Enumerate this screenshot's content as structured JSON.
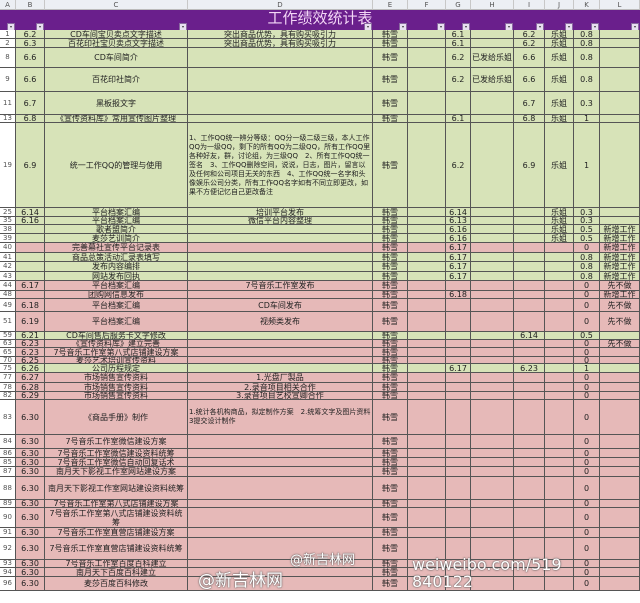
{
  "title": "工作绩效统计表",
  "columns": [
    "A",
    "B",
    "C",
    "D",
    "E",
    "F",
    "G",
    "H",
    "I",
    "J",
    "K",
    "L"
  ],
  "colors": {
    "green": "#d7e3b8",
    "pink": "#e6b9b8",
    "title_bg": "#6a1f8c",
    "title_text": "#f3d6f6"
  },
  "rows": [
    {
      "n": "1",
      "b": "6.2",
      "c": "CD车间宝贝卖点文字描述",
      "d": "突出商品优势，具有购买吸引力",
      "e": "韩雪",
      "f": "",
      "g": "6.1",
      "h": "",
      "i": "6.2",
      "j": "乐姐",
      "k": "0.8",
      "l": "",
      "color": "green"
    },
    {
      "n": "2",
      "b": "6.3",
      "c": "百花印社宝贝卖点文字描述",
      "d": "突出商品优势，具有购买吸引力",
      "e": "韩雪",
      "f": "",
      "g": "6.1",
      "h": "",
      "i": "6.2",
      "j": "乐姐",
      "k": "0.8",
      "l": "",
      "color": "green"
    },
    {
      "n": "8",
      "b": "6.6",
      "c": "CD车间简介",
      "d": "",
      "e": "韩雪",
      "f": "",
      "g": "6.2",
      "h": "已发给乐姐",
      "i": "6.6",
      "j": "乐姐",
      "k": "0.8",
      "l": "",
      "color": "green"
    },
    {
      "n": "9",
      "b": "6.6",
      "c": "百花印社简介",
      "d": "",
      "e": "韩雪",
      "f": "",
      "g": "6.2",
      "h": "已发给乐姐",
      "i": "6.6",
      "j": "乐姐",
      "k": "0.8",
      "l": "",
      "color": "green"
    },
    {
      "n": "11",
      "b": "6.7",
      "c": "黑板报文字",
      "d": "",
      "e": "韩雪",
      "f": "",
      "g": "",
      "h": "",
      "i": "6.7",
      "j": "乐姐",
      "k": "0.3",
      "l": "",
      "color": "green"
    },
    {
      "n": "13",
      "b": "6.8",
      "c": "《宣传资料库》常用宣传图片整理",
      "d": "",
      "e": "韩雪",
      "f": "",
      "g": "6.1",
      "h": "",
      "i": "6.8",
      "j": "乐姐",
      "k": "1",
      "l": "",
      "color": "green"
    },
    {
      "n": "19",
      "b": "6.9",
      "c": "统一工作QQ的管理与使用",
      "d": "1、工作QQ统一辨分等级：QQ分一级二级三级，本人工作QQ为一级QQ，剩下的所有QQ为二级QQ，所有工作QQ里各种好友，群，讨论组，为三级QQ　2、所有工作QQ统一签名　3、工作QQ删除空间，说说，日志，图片，留言以及任何和公司项目无关的东西　4、工作QQ统一名字和头像娱乐公司分类，所有工作QQ名字如有不同立即更改，如果不方便记忆自己更改备注",
      "e": "韩雪",
      "f": "",
      "g": "6.2",
      "h": "",
      "i": "6.9",
      "j": "乐姐",
      "k": "1",
      "l": "",
      "color": "green"
    },
    {
      "n": "25",
      "b": "6.14",
      "c": "平台档案汇编",
      "d": "培训平台发布",
      "e": "韩雪",
      "f": "",
      "g": "6.14",
      "h": "",
      "i": "",
      "j": "乐姐",
      "k": "0.3",
      "l": "",
      "color": "green"
    },
    {
      "n": "35",
      "b": "6.16",
      "c": "平台档案汇编",
      "d": "微信平台内容整理",
      "e": "韩雪",
      "f": "",
      "g": "6.13",
      "h": "",
      "i": "",
      "j": "乐姐",
      "k": "0.3",
      "l": "",
      "color": "green"
    },
    {
      "n": "38",
      "b": "",
      "c": "歌者盟简介",
      "d": "",
      "e": "韩雪",
      "f": "",
      "g": "6.16",
      "h": "",
      "i": "",
      "j": "乐姐",
      "k": "0.5",
      "l": "新增工作",
      "color": "green"
    },
    {
      "n": "39",
      "b": "",
      "c": "麦莎艺训简介",
      "d": "",
      "e": "韩雪",
      "f": "",
      "g": "6.16",
      "h": "",
      "i": "",
      "j": "乐姐",
      "k": "0.5",
      "l": "新增工作",
      "color": "green"
    },
    {
      "n": "40",
      "b": "",
      "c": "完善幕社宣传平台记录表",
      "d": "",
      "e": "韩雪",
      "f": "",
      "g": "6.17",
      "h": "",
      "i": "",
      "j": "",
      "k": "0",
      "l": "新增工作",
      "color": "pink"
    },
    {
      "n": "41",
      "b": "",
      "c": "商品总策活动汇录表填写",
      "d": "",
      "e": "韩雪",
      "f": "",
      "g": "6.17",
      "h": "",
      "i": "",
      "j": "",
      "k": "0.8",
      "l": "新增工作",
      "color": "green"
    },
    {
      "n": "42",
      "b": "",
      "c": "发布内容编排",
      "d": "",
      "e": "韩雪",
      "f": "",
      "g": "6.17",
      "h": "",
      "i": "",
      "j": "",
      "k": "0.8",
      "l": "新增工作",
      "color": "green"
    },
    {
      "n": "43",
      "b": "",
      "c": "网站发布回执",
      "d": "",
      "e": "韩雪",
      "f": "",
      "g": "6.17",
      "h": "",
      "i": "",
      "j": "",
      "k": "0.8",
      "l": "新增工作",
      "color": "green"
    },
    {
      "n": "44",
      "b": "6.17",
      "c": "平台档案汇编",
      "d": "7号音乐工作室发布",
      "e": "韩雪",
      "f": "",
      "g": "",
      "h": "",
      "i": "",
      "j": "",
      "k": "0",
      "l": "先不做",
      "color": "pink"
    },
    {
      "n": "48",
      "b": "",
      "c": "团购网信息发布",
      "d": "",
      "e": "韩雪",
      "f": "",
      "g": "6.18",
      "h": "",
      "i": "",
      "j": "",
      "k": "0",
      "l": "新增工作",
      "color": "pink"
    },
    {
      "n": "49",
      "b": "6.18",
      "c": "平台档案汇编",
      "d": "CD车间发布",
      "e": "韩雪",
      "f": "",
      "g": "",
      "h": "",
      "i": "",
      "j": "",
      "k": "0",
      "l": "先不做",
      "color": "pink"
    },
    {
      "n": "51",
      "b": "6.19",
      "c": "平台档案汇编",
      "d": "视频类发布",
      "e": "韩雪",
      "f": "",
      "g": "",
      "h": "",
      "i": "",
      "j": "",
      "k": "0",
      "l": "先不做",
      "color": "pink"
    },
    {
      "n": "59",
      "b": "6.21",
      "c": "CD车间售后服务卡文字修改",
      "d": "",
      "e": "韩雪",
      "f": "",
      "g": "",
      "h": "",
      "i": "6.14",
      "j": "",
      "k": "0.5",
      "l": "",
      "color": "green"
    },
    {
      "n": "63",
      "b": "6.23",
      "c": "《宣传资料库》建立完善",
      "d": "",
      "e": "韩雪",
      "f": "",
      "g": "",
      "h": "",
      "i": "",
      "j": "",
      "k": "0",
      "l": "先不做",
      "color": "pink"
    },
    {
      "n": "65",
      "b": "6.23",
      "c": "7号音乐工作室第八式店铺建设方案",
      "d": "",
      "e": "韩雪",
      "f": "",
      "g": "",
      "h": "",
      "i": "",
      "j": "",
      "k": "0",
      "l": "",
      "color": "pink"
    },
    {
      "n": "70",
      "b": "6.25",
      "c": "麦莎艺术培训宣传资料",
      "d": "",
      "e": "韩雪",
      "f": "",
      "g": "",
      "h": "",
      "i": "",
      "j": "",
      "k": "0",
      "l": "",
      "color": "pink"
    },
    {
      "n": "75",
      "b": "6.26",
      "c": "公司历程规定",
      "d": "",
      "e": "韩雪",
      "f": "",
      "g": "6.17",
      "h": "",
      "i": "6.23",
      "j": "",
      "k": "1",
      "l": "",
      "color": "green"
    },
    {
      "n": "77",
      "b": "6.27",
      "c": "市场销售宣传资料",
      "d": "1.光盘厂製品",
      "e": "韩雪",
      "f": "",
      "g": "",
      "h": "",
      "i": "",
      "j": "",
      "k": "0",
      "l": "",
      "color": "pink"
    },
    {
      "n": "78",
      "b": "6.28",
      "c": "市场销售宣传资料",
      "d": "2.录音项目相关合作",
      "e": "韩雪",
      "f": "",
      "g": "",
      "h": "",
      "i": "",
      "j": "",
      "k": "0",
      "l": "",
      "color": "pink"
    },
    {
      "n": "82",
      "b": "6.29",
      "c": "市场销售宣传资料",
      "d": "3.录音项目艺校宣卿合作",
      "e": "韩雪",
      "f": "",
      "g": "",
      "h": "",
      "i": "",
      "j": "",
      "k": "0",
      "l": "",
      "color": "pink"
    },
    {
      "n": "83",
      "b": "6.30",
      "c": "《商品手册》制作",
      "d": "1.统计各机构商品，拟定制作方案　2.统筹文字及图片资料　3提交设计制作",
      "e": "韩雪",
      "f": "",
      "g": "",
      "h": "",
      "i": "",
      "j": "",
      "k": "0",
      "l": "",
      "color": "pink"
    },
    {
      "n": "84",
      "b": "6.30",
      "c": "7号音乐工作室微信建设方案",
      "d": "",
      "e": "韩雪",
      "f": "",
      "g": "",
      "h": "",
      "i": "",
      "j": "",
      "k": "0",
      "l": "",
      "color": "pink"
    },
    {
      "n": "86",
      "b": "6.30",
      "c": "7号音乐工作室微信建设资料统筹",
      "d": "",
      "e": "韩雪",
      "f": "",
      "g": "",
      "h": "",
      "i": "",
      "j": "",
      "k": "0",
      "l": "",
      "color": "pink"
    },
    {
      "n": "85",
      "b": "6.30",
      "c": "7号音乐工作室微信自动回复话术",
      "d": "",
      "e": "韩雪",
      "f": "",
      "g": "",
      "h": "",
      "i": "",
      "j": "",
      "k": "0",
      "l": "",
      "color": "pink"
    },
    {
      "n": "87",
      "b": "6.30",
      "c": "南月天下影视工作室网站建设方案",
      "d": "",
      "e": "韩雪",
      "f": "",
      "g": "",
      "h": "",
      "i": "",
      "j": "",
      "k": "0",
      "l": "",
      "color": "pink"
    },
    {
      "n": "88",
      "b": "6.30",
      "c": "南月天下影视工作室网站建设资料统筹",
      "d": "",
      "e": "韩雪",
      "f": "",
      "g": "",
      "h": "",
      "i": "",
      "j": "",
      "k": "0",
      "l": "",
      "color": "pink"
    },
    {
      "n": "89",
      "b": "6.30",
      "c": "7号音乐工作室第八式店铺建设方案",
      "d": "",
      "e": "韩雪",
      "f": "",
      "g": "",
      "h": "",
      "i": "",
      "j": "",
      "k": "0",
      "l": "",
      "color": "pink"
    },
    {
      "n": "90",
      "b": "6.30",
      "c": "7号音乐工作室第八式店铺建设资料统筹",
      "d": "",
      "e": "韩雪",
      "f": "",
      "g": "",
      "h": "",
      "i": "",
      "j": "",
      "k": "0",
      "l": "",
      "color": "pink"
    },
    {
      "n": "91",
      "b": "6.30",
      "c": "7号音乐工作室直营店铺建设方案",
      "d": "",
      "e": "韩雪",
      "f": "",
      "g": "",
      "h": "",
      "i": "",
      "j": "",
      "k": "0",
      "l": "",
      "color": "pink"
    },
    {
      "n": "92",
      "b": "6.30",
      "c": "7号音乐工作室直营店铺建设资料统筹",
      "d": "",
      "e": "韩雪",
      "f": "",
      "g": "",
      "h": "",
      "i": "",
      "j": "",
      "k": "0",
      "l": "",
      "color": "pink"
    },
    {
      "n": "93",
      "b": "6.30",
      "c": "7号音乐工作室百度百科建立",
      "d": "",
      "e": "韩雪",
      "f": "",
      "g": "",
      "h": "",
      "i": "",
      "j": "",
      "k": "0",
      "l": "",
      "color": "pink"
    },
    {
      "n": "94",
      "b": "6.30",
      "c": "南月天下百度百科建立",
      "d": "",
      "e": "韩雪",
      "f": "",
      "g": "",
      "h": "",
      "i": "",
      "j": "",
      "k": "0",
      "l": "",
      "color": "pink"
    },
    {
      "n": "96",
      "b": "6.30",
      "c": "麦莎百度百科修改",
      "d": "",
      "e": "韩雪",
      "f": "",
      "g": "",
      "h": "",
      "i": "",
      "j": "",
      "k": "0",
      "l": "",
      "color": "pink"
    }
  ],
  "watermark": {
    "left": "@新吉林网",
    "right": "weiweibo.com/519840122",
    "right_top": "@新吉林网"
  }
}
